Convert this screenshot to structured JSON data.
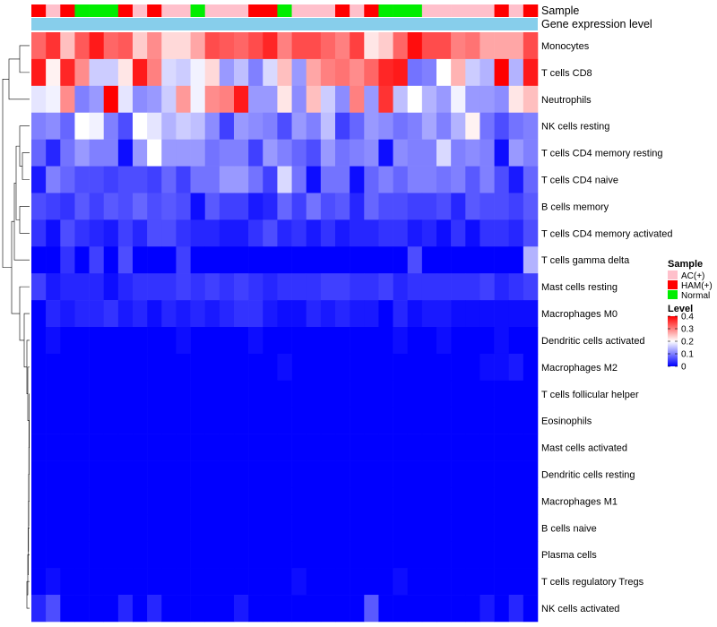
{
  "chart_data": {
    "type": "heatmap",
    "title": "",
    "columns": 35,
    "rows": [
      "Monocytes",
      "T cells CD8",
      "Neutrophils",
      "NK cells resting",
      "T cells CD4 memory resting",
      "T cells CD4 naive",
      "B cells memory",
      "T cells CD4 memory activated",
      "T cells gamma delta",
      "Mast cells resting",
      "Macrophages M0",
      "Dendritic cells activated",
      "Macrophages M2",
      "T cells follicular helper",
      "Eosinophils",
      "Mast cells activated",
      "Dendritic cells resting",
      "Macrophages M1",
      "B cells naive",
      "Plasma cells",
      "T cells regulatory  Tregs",
      "NK cells activated"
    ],
    "sample_annotation": {
      "label": "Sample",
      "values": [
        "HAM(+)",
        "AC(+)",
        "HAM(+)",
        "Normal",
        "Normal",
        "Normal",
        "HAM(+)",
        "AC(+)",
        "HAM(+)",
        "AC(+)",
        "AC(+)",
        "Normal",
        "AC(+)",
        "AC(+)",
        "AC(+)",
        "HAM(+)",
        "HAM(+)",
        "Normal",
        "AC(+)",
        "AC(+)",
        "AC(+)",
        "HAM(+)",
        "AC(+)",
        "HAM(+)",
        "Normal",
        "Normal",
        "Normal",
        "AC(+)",
        "AC(+)",
        "AC(+)",
        "AC(+)",
        "AC(+)",
        "HAM(+)",
        "AC(+)",
        "HAM(+)"
      ]
    },
    "expression_annotation": {
      "label": "Gene expression level"
    },
    "values": [
      [
        0.32,
        0.36,
        0.25,
        0.33,
        0.38,
        0.32,
        0.33,
        0.24,
        0.29,
        0.23,
        0.23,
        0.27,
        0.34,
        0.33,
        0.32,
        0.34,
        0.37,
        0.3,
        0.34,
        0.34,
        0.32,
        0.3,
        0.35,
        0.22,
        0.24,
        0.32,
        0.39,
        0.34,
        0.34,
        0.3,
        0.31,
        0.27,
        0.27,
        0.27,
        0.34
      ],
      [
        0.38,
        0.21,
        0.37,
        0.29,
        0.16,
        0.16,
        0.22,
        0.38,
        0.3,
        0.17,
        0.16,
        0.19,
        0.23,
        0.12,
        0.15,
        0.1,
        0.17,
        0.25,
        0.12,
        0.27,
        0.3,
        0.31,
        0.29,
        0.32,
        0.37,
        0.38,
        0.09,
        0.1,
        0.2,
        0.26,
        0.16,
        0.14,
        0.4,
        0.14,
        0.38
      ],
      [
        0.18,
        0.19,
        0.29,
        0.1,
        0.12,
        0.4,
        0.18,
        0.11,
        0.12,
        0.16,
        0.28,
        0.19,
        0.29,
        0.3,
        0.38,
        0.12,
        0.12,
        0.22,
        0.11,
        0.25,
        0.16,
        0.11,
        0.3,
        0.12,
        0.36,
        0.15,
        0.2,
        0.14,
        0.12,
        0.19,
        0.12,
        0.12,
        0.11,
        0.22,
        0.25
      ],
      [
        0.1,
        0.11,
        0.08,
        0.2,
        0.19,
        0.1,
        0.06,
        0.2,
        0.18,
        0.14,
        0.16,
        0.15,
        0.11,
        0.05,
        0.12,
        0.11,
        0.1,
        0.06,
        0.12,
        0.1,
        0.15,
        0.05,
        0.08,
        0.12,
        0.11,
        0.09,
        0.1,
        0.13,
        0.1,
        0.14,
        0.21,
        0.09,
        0.06,
        0.09,
        0.1
      ],
      [
        0.08,
        0.03,
        0.09,
        0.12,
        0.1,
        0.1,
        0.01,
        0.12,
        0.2,
        0.12,
        0.12,
        0.12,
        0.09,
        0.1,
        0.1,
        0.05,
        0.12,
        0.1,
        0.08,
        0.06,
        0.12,
        0.09,
        0.1,
        0.11,
        0.01,
        0.11,
        0.1,
        0.1,
        0.17,
        0.1,
        0.11,
        0.1,
        0.01,
        0.12,
        0.1
      ],
      [
        0.02,
        0.1,
        0.08,
        0.06,
        0.06,
        0.05,
        0.06,
        0.06,
        0.05,
        0.08,
        0.05,
        0.09,
        0.09,
        0.12,
        0.12,
        0.09,
        0.05,
        0.17,
        0.09,
        0.01,
        0.09,
        0.09,
        0.01,
        0.08,
        0.1,
        0.08,
        0.1,
        0.1,
        0.09,
        0.1,
        0.07,
        0.1,
        0.06,
        0.02,
        0.08
      ],
      [
        0.06,
        0.05,
        0.04,
        0.07,
        0.05,
        0.07,
        0.06,
        0.08,
        0.06,
        0.07,
        0.06,
        0.01,
        0.07,
        0.05,
        0.05,
        0.02,
        0.03,
        0.08,
        0.05,
        0.09,
        0.06,
        0.07,
        0.03,
        0.08,
        0.06,
        0.06,
        0.05,
        0.05,
        0.06,
        0.03,
        0.07,
        0.06,
        0.06,
        0.05,
        0.07
      ],
      [
        0.04,
        0.01,
        0.06,
        0.04,
        0.03,
        0.02,
        0.05,
        0.03,
        0.06,
        0.06,
        0.04,
        0.03,
        0.03,
        0.02,
        0.02,
        0.04,
        0.06,
        0.03,
        0.04,
        0.02,
        0.04,
        0.02,
        0.03,
        0.03,
        0.04,
        0.04,
        0.02,
        0.03,
        0.01,
        0.04,
        0.01,
        0.04,
        0.04,
        0.03,
        0.06
      ],
      [
        0.0,
        0.0,
        0.04,
        0.0,
        0.05,
        0.0,
        0.06,
        0.0,
        0.0,
        0.0,
        0.05,
        0.0,
        0.0,
        0.0,
        0.0,
        0.0,
        0.0,
        0.0,
        0.0,
        0.0,
        0.0,
        0.0,
        0.0,
        0.0,
        0.0,
        0.0,
        0.06,
        0.0,
        0.0,
        0.0,
        0.0,
        0.0,
        0.0,
        0.0,
        0.14
      ],
      [
        0.05,
        0.02,
        0.03,
        0.03,
        0.03,
        0.01,
        0.03,
        0.04,
        0.04,
        0.04,
        0.05,
        0.04,
        0.05,
        0.04,
        0.05,
        0.04,
        0.03,
        0.04,
        0.04,
        0.04,
        0.05,
        0.05,
        0.04,
        0.04,
        0.05,
        0.03,
        0.04,
        0.04,
        0.04,
        0.04,
        0.04,
        0.05,
        0.03,
        0.04,
        0.05
      ],
      [
        0.0,
        0.03,
        0.02,
        0.03,
        0.03,
        0.04,
        0.02,
        0.03,
        0.01,
        0.03,
        0.02,
        0.03,
        0.02,
        0.03,
        0.04,
        0.04,
        0.02,
        0.01,
        0.01,
        0.03,
        0.02,
        0.03,
        0.02,
        0.02,
        0.0,
        0.03,
        0.01,
        0.02,
        0.02,
        0.01,
        0.01,
        0.01,
        0.01,
        0.01,
        0.01
      ],
      [
        0.0,
        0.01,
        0.0,
        0.0,
        0.0,
        0.0,
        0.0,
        0.0,
        0.0,
        0.0,
        0.01,
        0.0,
        0.0,
        0.0,
        0.0,
        0.01,
        0.0,
        0.0,
        0.0,
        0.0,
        0.0,
        0.0,
        0.0,
        0.0,
        0.0,
        0.01,
        0.0,
        0.0,
        0.01,
        0.0,
        0.0,
        0.0,
        0.01,
        0.0,
        0.0
      ],
      [
        0.0,
        0.0,
        0.0,
        0.0,
        0.0,
        0.0,
        0.0,
        0.0,
        0.0,
        0.0,
        0.0,
        0.0,
        0.0,
        0.0,
        0.0,
        0.0,
        0.0,
        0.01,
        0.0,
        0.0,
        0.0,
        0.0,
        0.0,
        0.0,
        0.0,
        0.0,
        0.0,
        0.0,
        0.0,
        0.0,
        0.0,
        0.01,
        0.01,
        0.02,
        0.0
      ],
      [
        0.0,
        0.0,
        0.0,
        0.0,
        0.0,
        0.0,
        0.0,
        0.0,
        0.0,
        0.0,
        0.0,
        0.0,
        0.0,
        0.0,
        0.0,
        0.0,
        0.0,
        0.0,
        0.0,
        0.0,
        0.0,
        0.0,
        0.0,
        0.0,
        0.0,
        0.0,
        0.0,
        0.0,
        0.0,
        0.0,
        0.0,
        0.0,
        0.0,
        0.0,
        0.0
      ],
      [
        0.0,
        0.0,
        0.0,
        0.0,
        0.0,
        0.0,
        0.0,
        0.0,
        0.0,
        0.0,
        0.0,
        0.0,
        0.0,
        0.0,
        0.0,
        0.0,
        0.0,
        0.0,
        0.0,
        0.0,
        0.0,
        0.0,
        0.0,
        0.0,
        0.0,
        0.0,
        0.0,
        0.0,
        0.0,
        0.0,
        0.0,
        0.0,
        0.0,
        0.0,
        0.0
      ],
      [
        0.0,
        0.0,
        0.0,
        0.0,
        0.0,
        0.0,
        0.0,
        0.0,
        0.0,
        0.0,
        0.0,
        0.0,
        0.0,
        0.0,
        0.0,
        0.0,
        0.0,
        0.0,
        0.0,
        0.0,
        0.0,
        0.0,
        0.0,
        0.0,
        0.0,
        0.0,
        0.0,
        0.0,
        0.0,
        0.0,
        0.0,
        0.0,
        0.0,
        0.0,
        0.0
      ],
      [
        0.0,
        0.0,
        0.0,
        0.0,
        0.0,
        0.0,
        0.0,
        0.0,
        0.0,
        0.0,
        0.0,
        0.0,
        0.0,
        0.0,
        0.0,
        0.0,
        0.0,
        0.0,
        0.0,
        0.0,
        0.0,
        0.0,
        0.0,
        0.0,
        0.0,
        0.0,
        0.0,
        0.0,
        0.0,
        0.0,
        0.0,
        0.0,
        0.0,
        0.0,
        0.0
      ],
      [
        0.0,
        0.0,
        0.0,
        0.0,
        0.0,
        0.0,
        0.0,
        0.0,
        0.0,
        0.0,
        0.0,
        0.0,
        0.0,
        0.0,
        0.0,
        0.0,
        0.0,
        0.0,
        0.0,
        0.0,
        0.0,
        0.0,
        0.0,
        0.0,
        0.0,
        0.0,
        0.0,
        0.0,
        0.0,
        0.0,
        0.0,
        0.0,
        0.0,
        0.0,
        0.0
      ],
      [
        0.0,
        0.0,
        0.0,
        0.0,
        0.0,
        0.0,
        0.0,
        0.0,
        0.0,
        0.0,
        0.0,
        0.0,
        0.0,
        0.0,
        0.0,
        0.0,
        0.0,
        0.0,
        0.0,
        0.0,
        0.0,
        0.0,
        0.0,
        0.0,
        0.0,
        0.0,
        0.0,
        0.0,
        0.0,
        0.0,
        0.0,
        0.0,
        0.0,
        0.0,
        0.0
      ],
      [
        0.0,
        0.0,
        0.0,
        0.0,
        0.0,
        0.0,
        0.0,
        0.0,
        0.0,
        0.0,
        0.0,
        0.0,
        0.0,
        0.0,
        0.0,
        0.0,
        0.0,
        0.0,
        0.0,
        0.0,
        0.0,
        0.0,
        0.0,
        0.0,
        0.0,
        0.0,
        0.0,
        0.0,
        0.0,
        0.0,
        0.0,
        0.0,
        0.0,
        0.0,
        0.0
      ],
      [
        0.0,
        0.01,
        0.0,
        0.0,
        0.0,
        0.0,
        0.0,
        0.0,
        0.0,
        0.0,
        0.0,
        0.0,
        0.0,
        0.0,
        0.0,
        0.0,
        0.0,
        0.0,
        0.01,
        0.0,
        0.0,
        0.0,
        0.0,
        0.0,
        0.0,
        0.01,
        0.0,
        0.0,
        0.0,
        0.0,
        0.0,
        0.0,
        0.0,
        0.0,
        0.0
      ],
      [
        0.03,
        0.06,
        0.0,
        0.0,
        0.0,
        0.0,
        0.03,
        0.0,
        0.03,
        0.0,
        0.0,
        0.0,
        0.0,
        0.0,
        0.02,
        0.0,
        0.0,
        0.0,
        0.0,
        0.0,
        0.0,
        0.0,
        0.0,
        0.07,
        0.0,
        0.0,
        0.0,
        0.0,
        0.0,
        0.0,
        0.0,
        0.02,
        0.0,
        0.03,
        0.0
      ]
    ],
    "legend": {
      "sample": {
        "title": "Sample",
        "items": [
          {
            "label": "AC(+)",
            "color": "#ffc0cb"
          },
          {
            "label": "HAM(+)",
            "color": "#ff0000"
          },
          {
            "label": "Normal",
            "color": "#00ee00"
          }
        ]
      },
      "level": {
        "title": "Level",
        "ticks": [
          0.4,
          0.3,
          0.2,
          0.1,
          0
        ],
        "range": [
          0,
          0.4
        ]
      }
    },
    "colors": {
      "low": "#0000ff",
      "mid": "#ffffff",
      "high": "#ff0000",
      "midpoint": 0.2,
      "expression_bar": "#87ceeb"
    }
  }
}
